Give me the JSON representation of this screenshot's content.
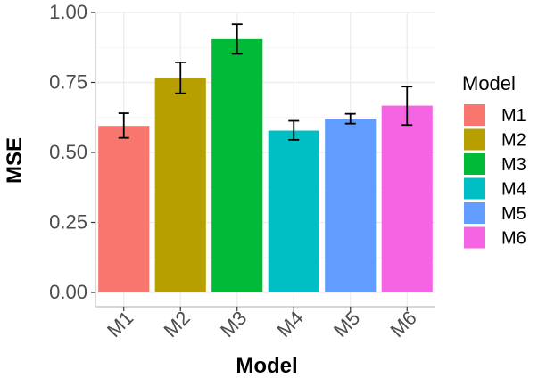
{
  "chart_data": {
    "type": "bar",
    "title": "",
    "xlabel": "Model",
    "ylabel": "MSE",
    "categories": [
      "M1",
      "M2",
      "M3",
      "M4",
      "M5",
      "M6"
    ],
    "values": [
      0.595,
      0.765,
      0.905,
      0.578,
      0.62,
      0.667
    ],
    "error_low": [
      0.552,
      0.711,
      0.852,
      0.545,
      0.603,
      0.598
    ],
    "error_high": [
      0.64,
      0.822,
      0.958,
      0.613,
      0.638,
      0.735
    ],
    "colors": [
      "#F8766D",
      "#B79F00",
      "#00BA38",
      "#00BFC4",
      "#619CFF",
      "#F564E3"
    ],
    "ylim": [
      0,
      1.0
    ],
    "yticks": [
      "0.00",
      "0.25",
      "0.50",
      "0.75",
      "1.00"
    ],
    "grid": true,
    "legend": {
      "title": "Model",
      "position": "right",
      "entries": [
        "M1",
        "M2",
        "M3",
        "M4",
        "M5",
        "M6"
      ]
    }
  }
}
